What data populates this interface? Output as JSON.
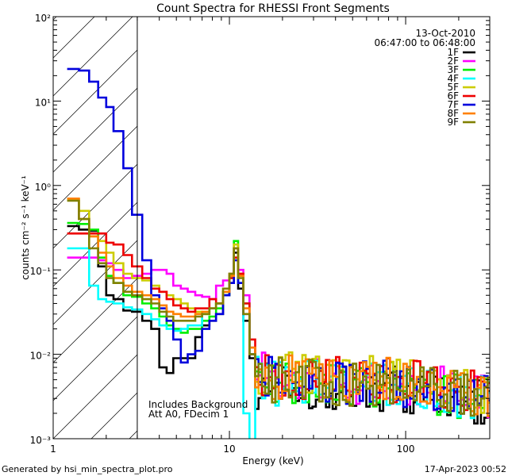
{
  "footer": {
    "generator": "Generated by hsi_min_spectra_plot.pro",
    "timestamp": "17-Apr-2023 00:52"
  },
  "chart_data": {
    "type": "line",
    "title": "Count Spectra for RHESSI Front Segments",
    "xlabel": "Energy (keV)",
    "ylabel": "counts cm⁻² s⁻¹ keV⁻¹",
    "xscale": "log",
    "yscale": "log",
    "xlim": [
      1,
      300
    ],
    "ylim": [
      0.001,
      100
    ],
    "x_ticks": [
      {
        "value": 1,
        "label": "1"
      },
      {
        "value": 10,
        "label": "10"
      },
      {
        "value": 100,
        "label": "100"
      }
    ],
    "y_ticks": [
      {
        "value": 0.001,
        "label": "10⁻³"
      },
      {
        "value": 0.01,
        "label": "10⁻²"
      },
      {
        "value": 0.1,
        "label": "10⁻¹"
      },
      {
        "value": 1,
        "label": "10⁰"
      },
      {
        "value": 10,
        "label": "10¹"
      },
      {
        "value": 100,
        "label": "10²"
      }
    ],
    "legend_placement": "top-right",
    "date_label": "13-Oct-2010",
    "time_label": "06:47:00 to 06:48:00",
    "annotations": [
      "Includes Background",
      "Att A0, FDecim 1"
    ],
    "hatched_region": {
      "xmin": 1,
      "xmax": 3
    },
    "series": [
      {
        "name": "1F",
        "color": "#000000",
        "profile": "detector",
        "low": [
          [
            1.2,
            0.33
          ],
          [
            1.4,
            0.3
          ],
          [
            1.6,
            0.29
          ],
          [
            1.8,
            0.11
          ],
          [
            2.0,
            0.05
          ],
          [
            2.2,
            0.045
          ],
          [
            2.5,
            0.033
          ],
          [
            2.8,
            0.032
          ],
          [
            3.2,
            0.025
          ],
          [
            3.6,
            0.02
          ],
          [
            4.0,
            0.007
          ],
          [
            4.4,
            0.006
          ],
          [
            4.8,
            0.009
          ],
          [
            5.3,
            0.009
          ],
          [
            5.8,
            0.009
          ],
          [
            6.4,
            0.016
          ],
          [
            7.0,
            0.022
          ],
          [
            7.7,
            0.025
          ],
          [
            8.4,
            0.03
          ]
        ],
        "line": [
          [
            9.2,
            0.05
          ],
          [
            10.0,
            0.07
          ],
          [
            10.6,
            0.16
          ],
          [
            11.2,
            0.06
          ],
          [
            12.0,
            0.025
          ],
          [
            13.0,
            0.009
          ]
        ],
        "tail": [
          [
            14,
            0.004
          ],
          [
            20,
            0.0045
          ],
          [
            40,
            0.004
          ],
          [
            80,
            0.004
          ],
          [
            160,
            0.0033
          ],
          [
            300,
            0.0025
          ]
        ]
      },
      {
        "name": "2F",
        "color": "#ff00ff",
        "profile": "detector",
        "low": [
          [
            1.2,
            0.14
          ],
          [
            1.4,
            0.14
          ],
          [
            1.6,
            0.14
          ],
          [
            1.8,
            0.13
          ],
          [
            2.0,
            0.12
          ],
          [
            2.2,
            0.1
          ],
          [
            2.5,
            0.08
          ],
          [
            2.8,
            0.085
          ],
          [
            3.2,
            0.09
          ],
          [
            3.6,
            0.1
          ],
          [
            4.0,
            0.1
          ],
          [
            4.4,
            0.09
          ],
          [
            4.8,
            0.065
          ],
          [
            5.3,
            0.06
          ],
          [
            5.8,
            0.055
          ],
          [
            6.4,
            0.05
          ],
          [
            7.0,
            0.048
          ],
          [
            7.7,
            0.045
          ],
          [
            8.4,
            0.065
          ]
        ],
        "line": [
          [
            9.2,
            0.075
          ],
          [
            10.0,
            0.09
          ],
          [
            10.6,
            0.18
          ],
          [
            11.2,
            0.1
          ],
          [
            12.0,
            0.05
          ],
          [
            13.0,
            0.012
          ]
        ],
        "tail": [
          [
            14,
            0.006
          ],
          [
            20,
            0.005
          ],
          [
            40,
            0.0045
          ],
          [
            80,
            0.0045
          ],
          [
            160,
            0.0038
          ],
          [
            300,
            0.003
          ]
        ]
      },
      {
        "name": "3F",
        "color": "#00ee00",
        "profile": "detector",
        "low": [
          [
            1.2,
            0.36
          ],
          [
            1.4,
            0.35
          ],
          [
            1.6,
            0.3
          ],
          [
            1.8,
            0.14
          ],
          [
            2.0,
            0.085
          ],
          [
            2.2,
            0.07
          ],
          [
            2.5,
            0.05
          ],
          [
            2.8,
            0.048
          ],
          [
            3.2,
            0.04
          ],
          [
            3.6,
            0.035
          ],
          [
            4.0,
            0.028
          ],
          [
            4.4,
            0.022
          ],
          [
            4.8,
            0.02
          ],
          [
            5.3,
            0.018
          ],
          [
            5.8,
            0.02
          ],
          [
            6.4,
            0.02
          ],
          [
            7.0,
            0.025
          ],
          [
            7.7,
            0.028
          ],
          [
            8.4,
            0.035
          ]
        ],
        "line": [
          [
            9.2,
            0.05
          ],
          [
            10.0,
            0.08
          ],
          [
            10.6,
            0.22
          ],
          [
            11.2,
            0.09
          ],
          [
            12.0,
            0.04
          ],
          [
            13.0,
            0.01
          ]
        ],
        "tail": [
          [
            14,
            0.005
          ],
          [
            20,
            0.005
          ],
          [
            40,
            0.0045
          ],
          [
            80,
            0.0045
          ],
          [
            160,
            0.0035
          ],
          [
            300,
            0.0027
          ]
        ]
      },
      {
        "name": "4F",
        "color": "#00ffff",
        "profile": "detector",
        "low": [
          [
            1.2,
            0.18
          ],
          [
            1.4,
            0.18
          ],
          [
            1.6,
            0.065
          ],
          [
            1.8,
            0.045
          ],
          [
            2.0,
            0.042
          ],
          [
            2.2,
            0.04
          ],
          [
            2.5,
            0.036
          ],
          [
            2.8,
            0.034
          ],
          [
            3.2,
            0.03
          ],
          [
            3.6,
            0.026
          ],
          [
            4.0,
            0.022
          ],
          [
            4.4,
            0.02
          ],
          [
            4.8,
            0.019
          ],
          [
            5.3,
            0.02
          ],
          [
            5.8,
            0.022
          ],
          [
            6.4,
            0.022
          ],
          [
            7.0,
            0.03
          ],
          [
            7.7,
            0.035
          ],
          [
            8.4,
            0.04
          ]
        ],
        "line": [
          [
            9.2,
            0.055
          ],
          [
            10.0,
            0.08
          ],
          [
            10.6,
            0.14
          ],
          [
            11.2,
            0.07
          ],
          [
            12.0,
            0.002
          ],
          [
            13.0,
            0.0009
          ]
        ],
        "tail": [
          [
            14,
            0.005
          ],
          [
            20,
            0.0045
          ],
          [
            40,
            0.0045
          ],
          [
            80,
            0.004
          ],
          [
            160,
            0.0035
          ],
          [
            300,
            0.0028
          ]
        ]
      },
      {
        "name": "5F",
        "color": "#cccc00",
        "profile": "detector",
        "low": [
          [
            1.2,
            0.69
          ],
          [
            1.4,
            0.5
          ],
          [
            1.6,
            0.25
          ],
          [
            1.8,
            0.22
          ],
          [
            2.0,
            0.16
          ],
          [
            2.2,
            0.12
          ],
          [
            2.5,
            0.09
          ],
          [
            2.8,
            0.08
          ],
          [
            3.2,
            0.075
          ],
          [
            3.6,
            0.065
          ],
          [
            4.0,
            0.055
          ],
          [
            4.4,
            0.05
          ],
          [
            4.8,
            0.045
          ],
          [
            5.3,
            0.04
          ],
          [
            5.8,
            0.035
          ],
          [
            6.4,
            0.032
          ],
          [
            7.0,
            0.03
          ],
          [
            7.7,
            0.035
          ],
          [
            8.4,
            0.04
          ]
        ],
        "line": [
          [
            9.2,
            0.055
          ],
          [
            10.0,
            0.09
          ],
          [
            10.6,
            0.2
          ],
          [
            11.2,
            0.09
          ],
          [
            12.0,
            0.035
          ],
          [
            13.0,
            0.012
          ]
        ],
        "tail": [
          [
            14,
            0.006
          ],
          [
            20,
            0.006
          ],
          [
            40,
            0.0055
          ],
          [
            80,
            0.0055
          ],
          [
            160,
            0.0042
          ],
          [
            300,
            0.0032
          ]
        ]
      },
      {
        "name": "6F",
        "color": "#ee0000",
        "profile": "detector",
        "low": [
          [
            1.2,
            0.27
          ],
          [
            1.4,
            0.27
          ],
          [
            1.6,
            0.27
          ],
          [
            1.8,
            0.27
          ],
          [
            2.0,
            0.21
          ],
          [
            2.2,
            0.2
          ],
          [
            2.5,
            0.15
          ],
          [
            2.8,
            0.11
          ],
          [
            3.2,
            0.08
          ],
          [
            3.6,
            0.06
          ],
          [
            4.0,
            0.055
          ],
          [
            4.4,
            0.045
          ],
          [
            4.8,
            0.038
          ],
          [
            5.3,
            0.035
          ],
          [
            5.8,
            0.032
          ],
          [
            6.4,
            0.035
          ],
          [
            7.0,
            0.035
          ],
          [
            7.7,
            0.045
          ],
          [
            8.4,
            0.04
          ]
        ],
        "line": [
          [
            9.2,
            0.055
          ],
          [
            10.0,
            0.08
          ],
          [
            10.6,
            0.14
          ],
          [
            11.2,
            0.09
          ],
          [
            12.0,
            0.04
          ],
          [
            13.0,
            0.015
          ]
        ],
        "tail": [
          [
            14,
            0.006
          ],
          [
            20,
            0.0055
          ],
          [
            40,
            0.005
          ],
          [
            80,
            0.005
          ],
          [
            160,
            0.0042
          ],
          [
            300,
            0.0032
          ]
        ]
      },
      {
        "name": "7F",
        "color": "#0000dd",
        "profile": "detector",
        "low": [
          [
            1.2,
            24
          ],
          [
            1.4,
            23
          ],
          [
            1.6,
            17
          ],
          [
            1.8,
            11
          ],
          [
            2.0,
            8.5
          ],
          [
            2.2,
            4.4
          ],
          [
            2.5,
            1.6
          ],
          [
            2.8,
            0.45
          ],
          [
            3.2,
            0.13
          ],
          [
            3.6,
            0.05
          ],
          [
            4.0,
            0.035
          ],
          [
            4.4,
            0.025
          ],
          [
            4.8,
            0.015
          ],
          [
            5.3,
            0.008
          ],
          [
            5.8,
            0.01
          ],
          [
            6.4,
            0.011
          ],
          [
            7.0,
            0.02
          ],
          [
            7.7,
            0.025
          ],
          [
            8.4,
            0.03
          ]
        ],
        "line": [
          [
            9.2,
            0.05
          ],
          [
            10.0,
            0.07
          ],
          [
            10.6,
            0.13
          ],
          [
            11.2,
            0.07
          ],
          [
            12.0,
            0.03
          ],
          [
            13.0,
            0.01
          ]
        ],
        "tail": [
          [
            14,
            0.005
          ],
          [
            20,
            0.005
          ],
          [
            40,
            0.0045
          ],
          [
            80,
            0.0045
          ],
          [
            160,
            0.0038
          ],
          [
            300,
            0.003
          ]
        ]
      },
      {
        "name": "8F",
        "color": "#ff8000",
        "profile": "detector",
        "low": [
          [
            1.2,
            0.7
          ],
          [
            1.4,
            0.4
          ],
          [
            1.6,
            0.25
          ],
          [
            1.8,
            0.16
          ],
          [
            2.0,
            0.11
          ],
          [
            2.2,
            0.08
          ],
          [
            2.5,
            0.065
          ],
          [
            2.8,
            0.055
          ],
          [
            3.2,
            0.05
          ],
          [
            3.6,
            0.045
          ],
          [
            4.0,
            0.038
          ],
          [
            4.4,
            0.032
          ],
          [
            4.8,
            0.03
          ],
          [
            5.3,
            0.028
          ],
          [
            5.8,
            0.028
          ],
          [
            6.4,
            0.03
          ],
          [
            7.0,
            0.032
          ],
          [
            7.7,
            0.035
          ],
          [
            8.4,
            0.04
          ]
        ],
        "line": [
          [
            9.2,
            0.055
          ],
          [
            10.0,
            0.085
          ],
          [
            10.6,
            0.18
          ],
          [
            11.2,
            0.085
          ],
          [
            12.0,
            0.035
          ],
          [
            13.0,
            0.012
          ]
        ],
        "tail": [
          [
            14,
            0.0055
          ],
          [
            20,
            0.0055
          ],
          [
            40,
            0.005
          ],
          [
            80,
            0.005
          ],
          [
            160,
            0.004
          ],
          [
            300,
            0.0032
          ]
        ]
      },
      {
        "name": "9F",
        "color": "#808000",
        "profile": "detector",
        "low": [
          [
            1.2,
            0.66
          ],
          [
            1.4,
            0.4
          ],
          [
            1.6,
            0.18
          ],
          [
            1.8,
            0.12
          ],
          [
            2.0,
            0.08
          ],
          [
            2.2,
            0.07
          ],
          [
            2.5,
            0.055
          ],
          [
            2.8,
            0.05
          ],
          [
            3.2,
            0.045
          ],
          [
            3.6,
            0.04
          ],
          [
            4.0,
            0.032
          ],
          [
            4.4,
            0.028
          ],
          [
            4.8,
            0.025
          ],
          [
            5.3,
            0.025
          ],
          [
            5.8,
            0.025
          ],
          [
            6.4,
            0.028
          ],
          [
            7.0,
            0.03
          ],
          [
            7.7,
            0.035
          ],
          [
            8.4,
            0.04
          ]
        ],
        "line": [
          [
            9.2,
            0.06
          ],
          [
            10.0,
            0.09
          ],
          [
            10.6,
            0.18
          ],
          [
            11.2,
            0.08
          ],
          [
            12.0,
            0.03
          ],
          [
            13.0,
            0.01
          ]
        ],
        "tail": [
          [
            14,
            0.005
          ],
          [
            20,
            0.0048
          ],
          [
            40,
            0.0045
          ],
          [
            80,
            0.0045
          ],
          [
            160,
            0.0038
          ],
          [
            300,
            0.003
          ]
        ]
      }
    ]
  }
}
